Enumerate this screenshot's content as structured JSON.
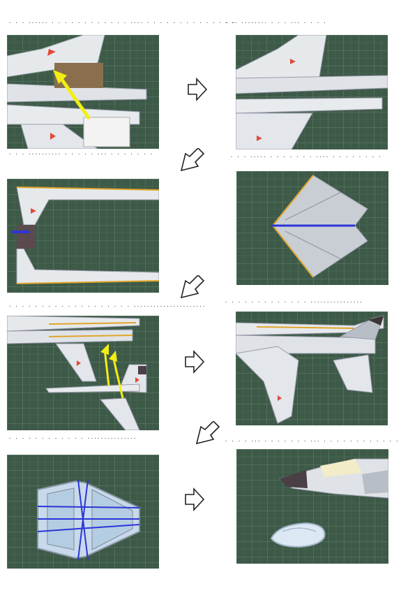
{
  "steps": [
    {
      "id": 1,
      "caption": ". . . ...... . . . . . . . . . . . . .... . . . . . . . . . . . . . ."
    },
    {
      "id": 2,
      "caption": ". .. ........ . . . ... . . . ."
    },
    {
      "id": 3,
      "caption": ". . . .......... . . . . . ... . . . . . . ."
    },
    {
      "id": 4,
      "caption": ". . . ..... . . . . . . . .... . . . . . . . ."
    },
    {
      "id": 5,
      "caption": ". . . . . . . . . . . . . . . . . . . ......................"
    },
    {
      "id": 6,
      "caption": ". . . . . . . . . . . . . ................"
    },
    {
      "id": 7,
      "caption": ". . . . . . . . . . . . ..............."
    },
    {
      "id": 8,
      "caption": ". . . . ... . . . . . . . ... . . . . . . . . . . . ."
    }
  ],
  "colors": {
    "mat": "#3d5a48",
    "grid": "#6f8f78",
    "paper": "#e6e9ec",
    "panel": "#c9ced4",
    "yellow_arrow": "#f2ee14",
    "blue_line": "#2b35d8",
    "orange_edge": "#e0a52a"
  },
  "icons": {
    "flow_right": "hollow-arrow-right-icon",
    "flow_down_left": "hollow-arrow-down-left-icon"
  }
}
